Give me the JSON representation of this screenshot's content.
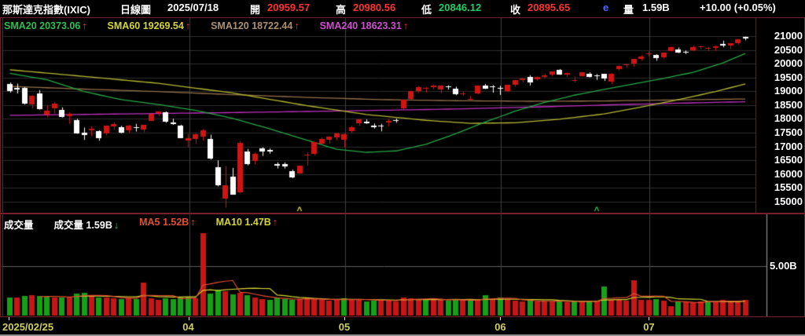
{
  "header": {
    "title": "那斯達克指數(IXIC)",
    "chart_type": "日線圖",
    "date": "2025/07/18",
    "open_label": "開",
    "open": "20959.57",
    "high_label": "高",
    "high": "20980.56",
    "low_label": "低",
    "low": "20846.12",
    "close_label": "收",
    "close": "20895.65",
    "e_flag": "e",
    "volume_label": "量",
    "volume": "1.59B",
    "change": "+10.00 (+0.05%)"
  },
  "colors": {
    "up_red": "#ff3333",
    "down_green": "#22cc66",
    "flag_blue": "#5566ff",
    "axis_label": "#cfcf5f",
    "candle_up": "#d01414",
    "candle_down": "#ffffff",
    "vol_up": "#c81616",
    "vol_down": "#17a017"
  },
  "price_panel": {
    "legend": [
      {
        "label": "SMA20 20373.06",
        "arrow": "↑",
        "color": "#2fbf4f"
      },
      {
        "label": "SMA60 19269.54",
        "arrow": "↑",
        "color": "#d6d633"
      },
      {
        "label": "SMA120 18722.44",
        "arrow": "↑",
        "color": "#ab9070"
      },
      {
        "label": "SMA240 18623.31",
        "arrow": "↑",
        "color": "#d04fd0"
      }
    ],
    "y_ticks": [
      "21000",
      "20500",
      "20000",
      "19500",
      "19000",
      "18500",
      "18000",
      "17500",
      "17000",
      "16500",
      "16000",
      "15500",
      "15000"
    ]
  },
  "volume_panel": {
    "legend_title": "成交量",
    "legend_volume": "成交量 1.59B",
    "volume_arrow": "↓",
    "legend_ma5": "MA5 1.52B",
    "ma5_arrow": "↑",
    "legend_ma10": "MA10 1.47B",
    "ma10_arrow": "↑",
    "ma5_color": "#e05030",
    "ma10_color": "#d6d633",
    "y_tick": "5.00B"
  },
  "x_axis": {
    "start_label": "2025/02/25",
    "month_labels": [
      {
        "day": 25,
        "text": "04"
      },
      {
        "day": 46,
        "text": "05"
      },
      {
        "day": 67,
        "text": "06"
      },
      {
        "day": 87,
        "text": "07"
      }
    ]
  },
  "chart_data": {
    "type": "candlestick",
    "instrument": "NASDAQ Composite (IXIC)",
    "period": "daily",
    "start_date": "2025/02/25",
    "end_date": "2025/07/18",
    "price_axis": {
      "min": 15000,
      "max": 21000,
      "step": 500
    },
    "volume_axis": {
      "gridline": 5.0,
      "unit": "B"
    },
    "candles": [
      [
        19273,
        19320,
        18950,
        19026
      ],
      [
        19126,
        19282,
        18921,
        19075
      ],
      [
        19120,
        19152,
        18521,
        18544
      ],
      [
        18542,
        18860,
        18373,
        18847
      ],
      [
        18923,
        19042,
        18337,
        18350
      ],
      [
        18156,
        18482,
        18064,
        18285
      ],
      [
        18375,
        18608,
        18202,
        18552
      ],
      [
        18325,
        18420,
        18049,
        18069
      ],
      [
        18100,
        18237,
        17815,
        18196
      ],
      [
        17956,
        18004,
        17461,
        17468
      ],
      [
        17515,
        17687,
        17239,
        17436
      ],
      [
        17595,
        17735,
        17367,
        17648
      ],
      [
        17548,
        17588,
        17210,
        17303
      ],
      [
        17464,
        17754,
        17406,
        17754
      ],
      [
        17717,
        17876,
        17608,
        17808
      ],
      [
        17701,
        17750,
        17478,
        17504
      ],
      [
        17578,
        17781,
        17494,
        17750
      ],
      [
        17714,
        17823,
        17541,
        17691
      ],
      [
        17620,
        17792,
        17518,
        17784
      ],
      [
        17942,
        18110,
        17925,
        18188
      ],
      [
        18221,
        18281,
        18106,
        18272
      ],
      [
        18241,
        18269,
        17858,
        17899
      ],
      [
        17875,
        18003,
        17784,
        17804
      ],
      [
        17768,
        17786,
        17313,
        17323
      ],
      [
        17218,
        17458,
        16972,
        17299
      ],
      [
        17277,
        17491,
        17100,
        17450
      ],
      [
        17377,
        17630,
        17210,
        17601
      ],
      [
        17268,
        17430,
        16527,
        16550
      ],
      [
        16253,
        16499,
        15556,
        15587
      ],
      [
        15109,
        16292,
        14784,
        15603
      ],
      [
        15922,
        16226,
        15267,
        15268
      ],
      [
        15319,
        17201,
        15298,
        17124
      ],
      [
        16832,
        16912,
        16317,
        16387
      ],
      [
        16477,
        16781,
        16355,
        16724
      ],
      [
        16934,
        16973,
        16658,
        16831
      ],
      [
        16885,
        16929,
        16741,
        16823
      ],
      [
        16373,
        16426,
        16206,
        16307
      ],
      [
        16361,
        16425,
        16202,
        16286
      ],
      [
        16106,
        16166,
        15850,
        15870
      ],
      [
        16028,
        16300,
        16008,
        16300
      ],
      [
        16703,
        16788,
        16306,
        16708
      ],
      [
        16747,
        17166,
        16684,
        17166
      ],
      [
        17112,
        17326,
        17055,
        17283
      ],
      [
        17255,
        17370,
        17102,
        17366
      ],
      [
        17322,
        17481,
        17222,
        17461
      ],
      [
        17250,
        17481,
        16972,
        17446
      ],
      [
        17566,
        17754,
        17486,
        17710
      ],
      [
        17831,
        17978,
        17744,
        17978
      ],
      [
        17898,
        17983,
        17822,
        17844
      ],
      [
        17750,
        17834,
        17648,
        17690
      ],
      [
        17756,
        17822,
        17551,
        17738
      ],
      [
        17869,
        17998,
        17733,
        17928
      ],
      [
        17945,
        18011,
        17862,
        17929
      ],
      [
        18391,
        18708,
        18335,
        18708
      ],
      [
        18719,
        19021,
        18689,
        19011
      ],
      [
        18997,
        19191,
        18944,
        19147
      ],
      [
        19076,
        19152,
        18953,
        19112
      ],
      [
        19163,
        19245,
        19076,
        19211
      ],
      [
        19077,
        19225,
        18936,
        19215
      ],
      [
        19171,
        19218,
        19064,
        19143
      ],
      [
        19081,
        19168,
        18860,
        18872
      ],
      [
        18916,
        19006,
        18838,
        18925
      ],
      [
        18731,
        18832,
        18678,
        18737
      ],
      [
        18911,
        19217,
        18899,
        19199
      ],
      [
        19222,
        19269,
        19082,
        19101
      ],
      [
        19193,
        19225,
        18952,
        19176
      ],
      [
        19130,
        19200,
        18870,
        19114
      ],
      [
        19026,
        19243,
        18965,
        19243
      ],
      [
        19226,
        19399,
        19161,
        19399
      ],
      [
        19403,
        19465,
        19317,
        19461
      ],
      [
        19512,
        19584,
        19211,
        19299
      ],
      [
        19456,
        19531,
        19389,
        19530
      ],
      [
        19541,
        19640,
        19476,
        19591
      ],
      [
        19605,
        19716,
        19546,
        19715
      ],
      [
        19774,
        19805,
        19596,
        19616
      ],
      [
        19600,
        19676,
        19517,
        19662
      ],
      [
        19400,
        19527,
        19326,
        19407
      ],
      [
        19557,
        19701,
        19536,
        19701
      ],
      [
        19636,
        19684,
        19503,
        19521
      ],
      [
        19568,
        19623,
        19414,
        19546
      ],
      [
        19621,
        19634,
        19375,
        19447
      ],
      [
        19352,
        19656,
        19257,
        19631
      ],
      [
        19786,
        19936,
        19760,
        19913
      ],
      [
        19935,
        20007,
        19857,
        19974
      ],
      [
        19994,
        20171,
        19901,
        20168
      ],
      [
        20192,
        20312,
        20110,
        20273
      ],
      [
        20329,
        20418,
        20263,
        20369
      ],
      [
        20322,
        20343,
        20106,
        20203
      ],
      [
        20232,
        20408,
        20191,
        20393
      ],
      [
        20449,
        20624,
        20436,
        20601
      ],
      [
        20521,
        20587,
        20385,
        20413
      ],
      [
        20441,
        20480,
        20348,
        20418
      ],
      [
        20505,
        20655,
        20453,
        20611
      ],
      [
        20591,
        20655,
        20523,
        20630
      ],
      [
        20566,
        20599,
        20457,
        20585
      ],
      [
        20574,
        20665,
        20471,
        20640
      ],
      [
        20724,
        20836,
        20594,
        20677
      ],
      [
        20645,
        20746,
        20527,
        20730
      ],
      [
        20756,
        20896,
        20689,
        20885
      ],
      [
        20959,
        20980,
        20846,
        20895
      ]
    ],
    "volumes": [
      1.85,
      1.8,
      1.95,
      2.05,
      1.95,
      1.9,
      1.8,
      1.85,
      1.9,
      2.2,
      2.3,
      1.95,
      1.85,
      1.8,
      1.75,
      1.7,
      1.75,
      1.7,
      3.3,
      1.75,
      1.6,
      1.75,
      1.65,
      1.8,
      1.9,
      1.75,
      8.3,
      2.25,
      2.6,
      2.45,
      2.15,
      2.3,
      2.05,
      1.85,
      1.7,
      1.6,
      1.8,
      1.7,
      1.55,
      1.65,
      1.75,
      1.7,
      1.6,
      1.5,
      1.55,
      1.75,
      1.7,
      1.6,
      1.45,
      1.5,
      1.55,
      1.6,
      1.45,
      1.85,
      1.75,
      1.65,
      1.7,
      1.6,
      1.55,
      1.5,
      1.65,
      1.55,
      1.5,
      1.6,
      2.1,
      1.7,
      1.8,
      1.55,
      1.5,
      1.4,
      1.55,
      1.45,
      1.4,
      1.45,
      1.5,
      1.35,
      1.45,
      1.4,
      1.45,
      1.5,
      2.9,
      1.55,
      1.6,
      1.5,
      3.55,
      1.55,
      1.6,
      1.65,
      1.48,
      0.95,
      1.46,
      1.42,
      1.38,
      1.42,
      1.35,
      1.46,
      1.55,
      1.48,
      1.45,
      1.59
    ],
    "volume_color_rule": "red if close >= previous close else green",
    "sma": {
      "sma20": {
        "color": "#25a845",
        "points": [
          [
            0,
            19650
          ],
          [
            5,
            19420
          ],
          [
            10,
            18990
          ],
          [
            15,
            18700
          ],
          [
            20,
            18520
          ],
          [
            25,
            18310
          ],
          [
            30,
            18020
          ],
          [
            35,
            17640
          ],
          [
            40,
            17230
          ],
          [
            44,
            16900
          ],
          [
            48,
            16790
          ],
          [
            52,
            16840
          ],
          [
            56,
            17080
          ],
          [
            60,
            17460
          ],
          [
            64,
            17890
          ],
          [
            68,
            18280
          ],
          [
            72,
            18600
          ],
          [
            76,
            18860
          ],
          [
            80,
            19070
          ],
          [
            84,
            19270
          ],
          [
            88,
            19470
          ],
          [
            92,
            19690
          ],
          [
            96,
            20030
          ],
          [
            99,
            20373
          ]
        ]
      },
      "sma60": {
        "color": "#b8b832",
        "points": [
          [
            0,
            19780
          ],
          [
            10,
            19540
          ],
          [
            20,
            19290
          ],
          [
            30,
            18940
          ],
          [
            40,
            18480
          ],
          [
            48,
            18160
          ],
          [
            56,
            17950
          ],
          [
            62,
            17840
          ],
          [
            68,
            17860
          ],
          [
            74,
            17990
          ],
          [
            80,
            18180
          ],
          [
            85,
            18430
          ],
          [
            90,
            18700
          ],
          [
            95,
            18990
          ],
          [
            99,
            19270
          ]
        ]
      },
      "sma120": {
        "color": "#96704a",
        "points": [
          [
            0,
            19180
          ],
          [
            10,
            19080
          ],
          [
            20,
            18990
          ],
          [
            30,
            18880
          ],
          [
            40,
            18780
          ],
          [
            50,
            18700
          ],
          [
            60,
            18660
          ],
          [
            70,
            18640
          ],
          [
            80,
            18650
          ],
          [
            90,
            18690
          ],
          [
            99,
            18722
          ]
        ]
      },
      "sma240": {
        "color": "#c030c0",
        "points": [
          [
            0,
            18130
          ],
          [
            15,
            18180
          ],
          [
            30,
            18230
          ],
          [
            45,
            18290
          ],
          [
            60,
            18360
          ],
          [
            72,
            18440
          ],
          [
            82,
            18520
          ],
          [
            90,
            18570
          ],
          [
            99,
            18623
          ]
        ]
      }
    },
    "volume_ma": {
      "ma5_window": 5,
      "ma10_window": 10
    },
    "markers": [
      {
        "day": 39,
        "symbol": "^",
        "color": "#d8d848"
      },
      {
        "day": 79,
        "symbol": "^",
        "color": "#30c050"
      }
    ]
  }
}
